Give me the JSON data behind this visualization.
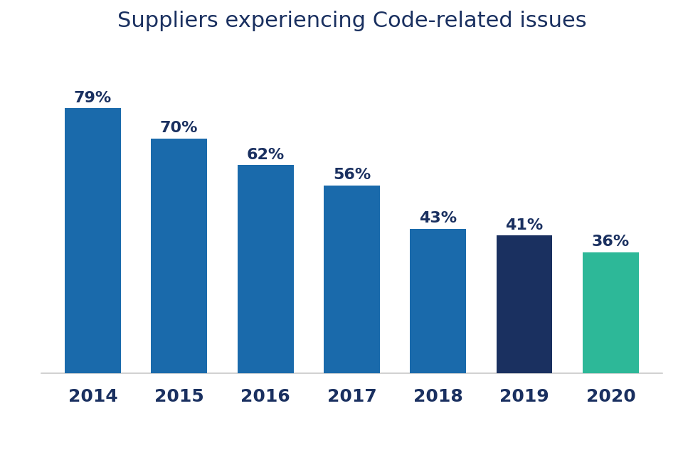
{
  "title": "Suppliers experiencing Code-related issues",
  "categories": [
    "2014",
    "2015",
    "2016",
    "2017",
    "2018",
    "2019",
    "2020"
  ],
  "values": [
    79,
    70,
    62,
    56,
    43,
    41,
    36
  ],
  "labels": [
    "79%",
    "70%",
    "62%",
    "56%",
    "43%",
    "41%",
    "36%"
  ],
  "bar_colors": [
    "#1a6aab",
    "#1a6aab",
    "#1a6aab",
    "#1a6aab",
    "#1a6aab",
    "#1a3060",
    "#2db898"
  ],
  "background_color": "#ffffff",
  "plot_bg_color": "#ffffff",
  "title_color": "#1a3060",
  "label_color": "#1a3060",
  "xlabel_color": "#1a3060",
  "title_fontsize": 22,
  "label_fontsize": 16,
  "xlabel_fontsize": 18,
  "ylim": [
    0,
    95
  ],
  "bar_width": 0.65
}
